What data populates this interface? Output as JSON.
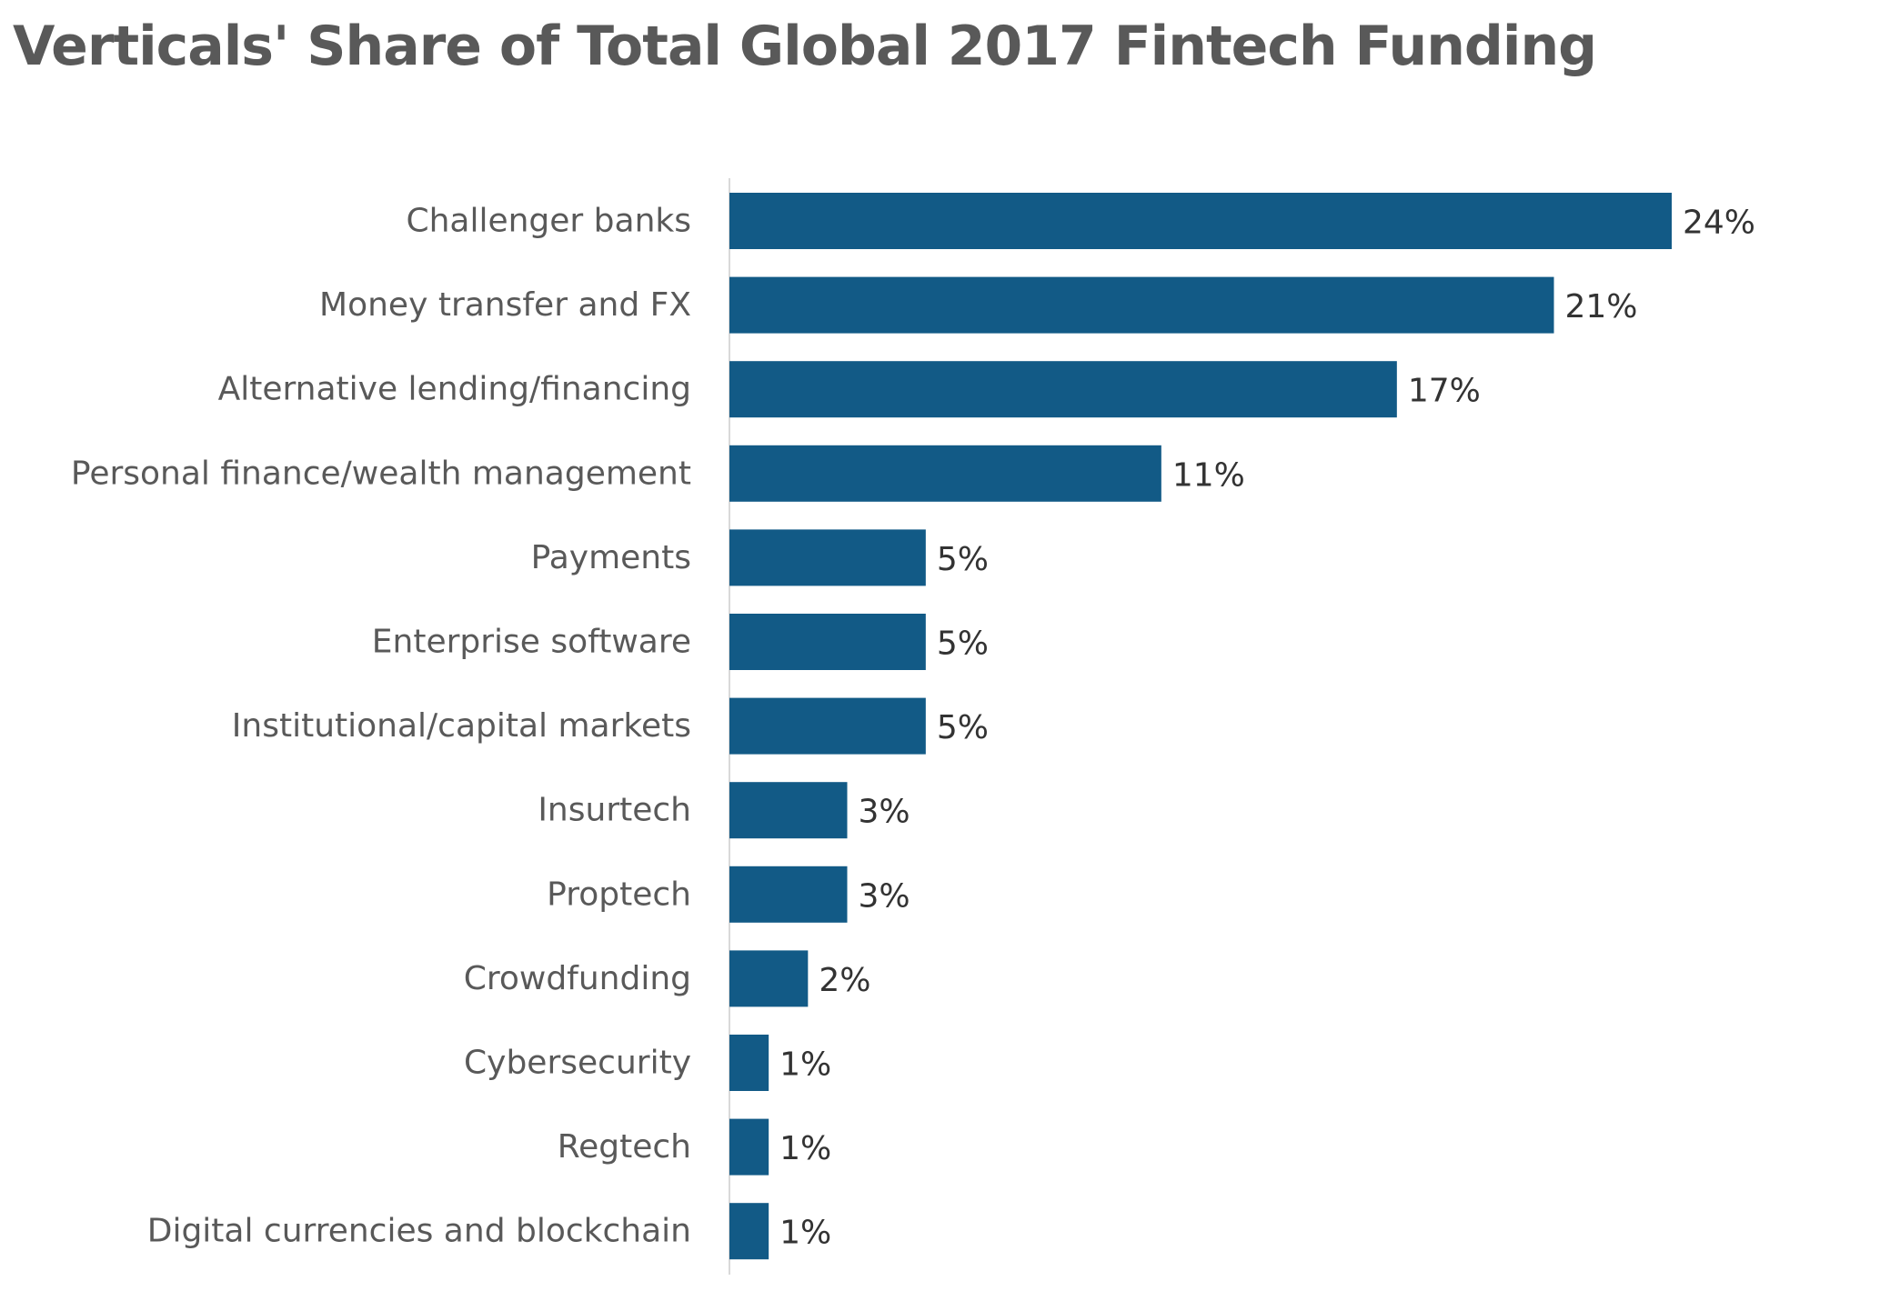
{
  "chart_data": {
    "type": "bar",
    "orientation": "horizontal",
    "title": "Verticals' Share of Total Global 2017 Fintech Funding",
    "xlabel": "",
    "ylabel": "",
    "categories": [
      "Challenger banks",
      "Money transfer and FX",
      "Alternative lending/financing",
      "Personal finance/wealth management",
      "Payments",
      "Enterprise software",
      "Institutional/capital markets",
      "Insurtech",
      "Proptech",
      "Crowdfunding",
      "Cybersecurity",
      "Regtech",
      "Digital currencies and blockchain"
    ],
    "values": [
      24,
      21,
      17,
      11,
      5,
      5,
      5,
      3,
      3,
      2,
      1,
      1,
      1
    ],
    "value_labels": [
      "24%",
      "21%",
      "17%",
      "11%",
      "5%",
      "5%",
      "5%",
      "3%",
      "3%",
      "2%",
      "1%",
      "1%",
      "1%"
    ],
    "value_unit": "%",
    "xlim": [
      0,
      24
    ],
    "grid": false,
    "legend": "none",
    "colors": {
      "bar": "#125A86",
      "axis": "#D9D9D9",
      "title": "#595959",
      "category_text": "#595959",
      "value_text": "#333333"
    }
  }
}
